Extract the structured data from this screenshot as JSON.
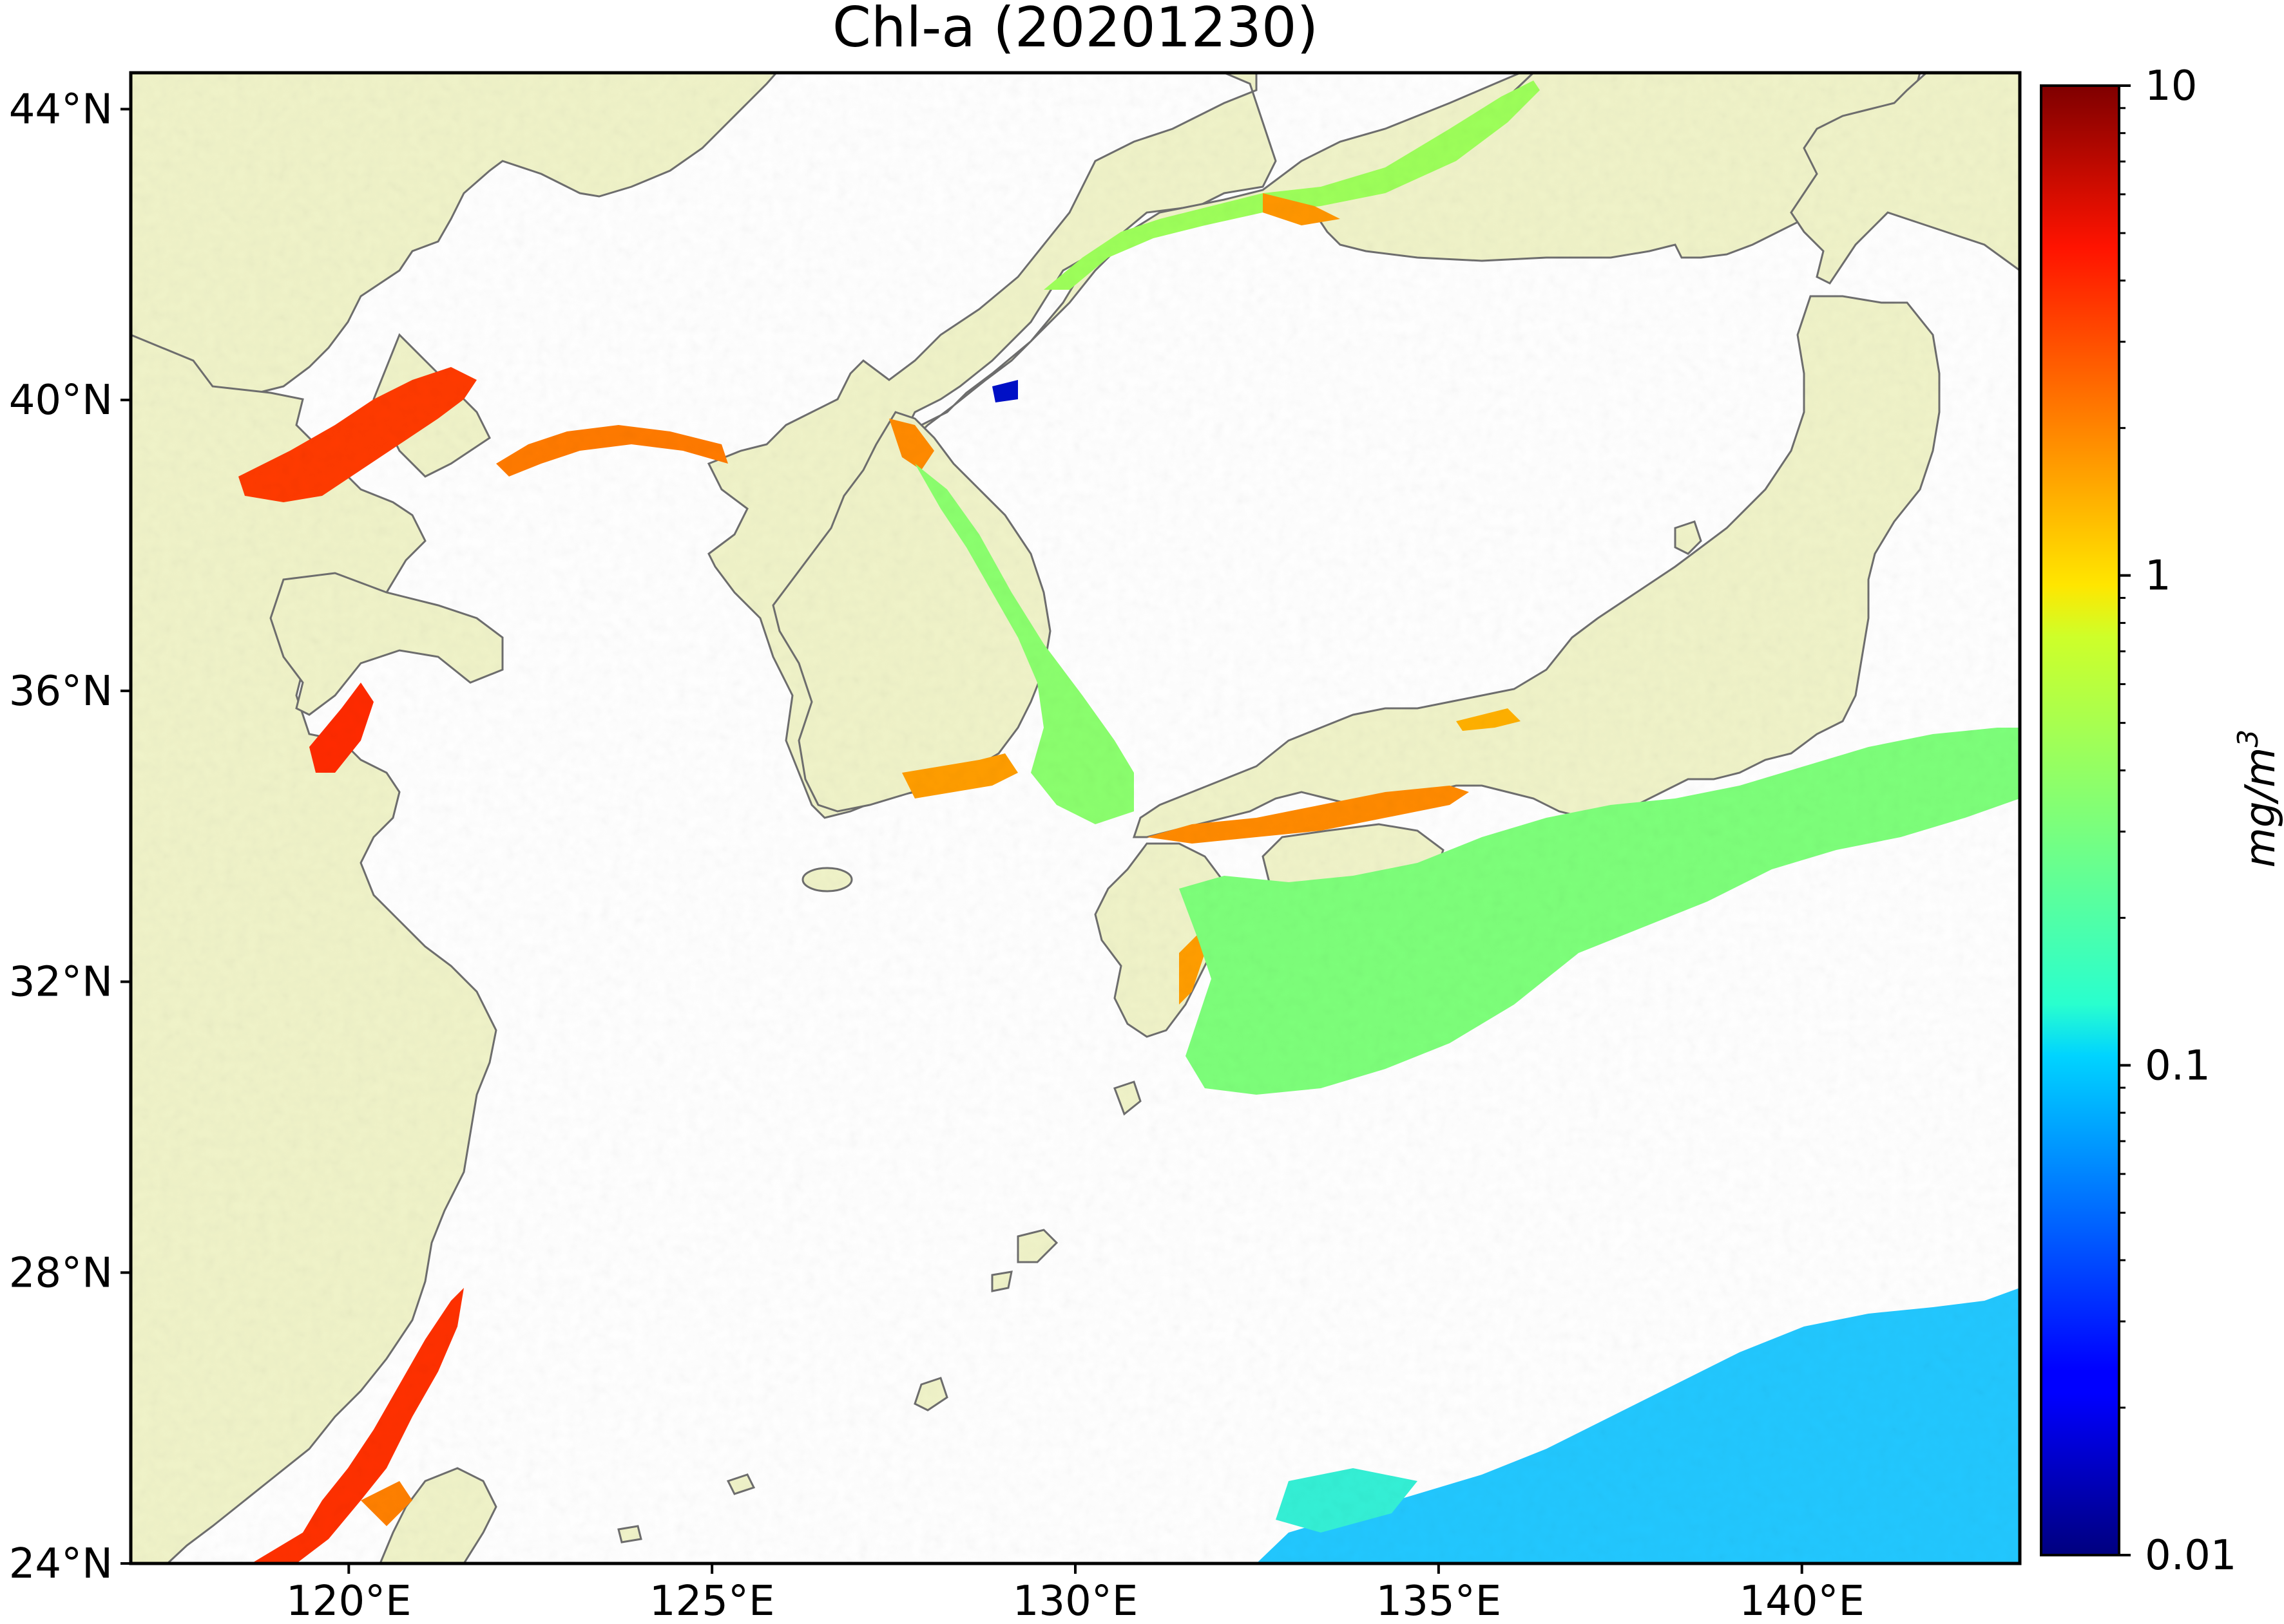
{
  "map": {
    "title": "Chl-a (20201230)",
    "variable": "Chl-a",
    "date": "20201230",
    "extent": {
      "lon_min": 117,
      "lon_max": 143,
      "lat_min": 24,
      "lat_max": 44.5
    },
    "lat_ticks": [
      {
        "value": 44,
        "label": "44°N"
      },
      {
        "value": 40,
        "label": "40°N"
      },
      {
        "value": 36,
        "label": "36°N"
      },
      {
        "value": 32,
        "label": "32°N"
      },
      {
        "value": 28,
        "label": "28°N"
      },
      {
        "value": 24,
        "label": "24°N"
      }
    ],
    "lon_ticks": [
      {
        "value": 120,
        "label": "120°E"
      },
      {
        "value": 125,
        "label": "125°E"
      },
      {
        "value": 130,
        "label": "130°E"
      },
      {
        "value": 135,
        "label": "135°E"
      },
      {
        "value": 140,
        "label": "140°E"
      }
    ],
    "colors": {
      "land": "#f0f3c9",
      "coastline": "#6e6e6e",
      "ocean_no_data": "#ffffff"
    }
  },
  "colorbar": {
    "label": "mg/m",
    "label_superscript": "3",
    "scale": "log",
    "range": [
      0.01,
      10
    ],
    "colormap": "jet",
    "major_ticks": [
      {
        "value": 10,
        "label": "10"
      },
      {
        "value": 1,
        "label": "1"
      },
      {
        "value": 0.1,
        "label": "0.1"
      },
      {
        "value": 0.01,
        "label": "0.01"
      }
    ],
    "minor_ticks": [
      0.02,
      0.03,
      0.04,
      0.05,
      0.06,
      0.07,
      0.08,
      0.09,
      0.2,
      0.3,
      0.4,
      0.5,
      0.6,
      0.7,
      0.8,
      0.9,
      2,
      3,
      4,
      5,
      6,
      7,
      8,
      9
    ]
  }
}
